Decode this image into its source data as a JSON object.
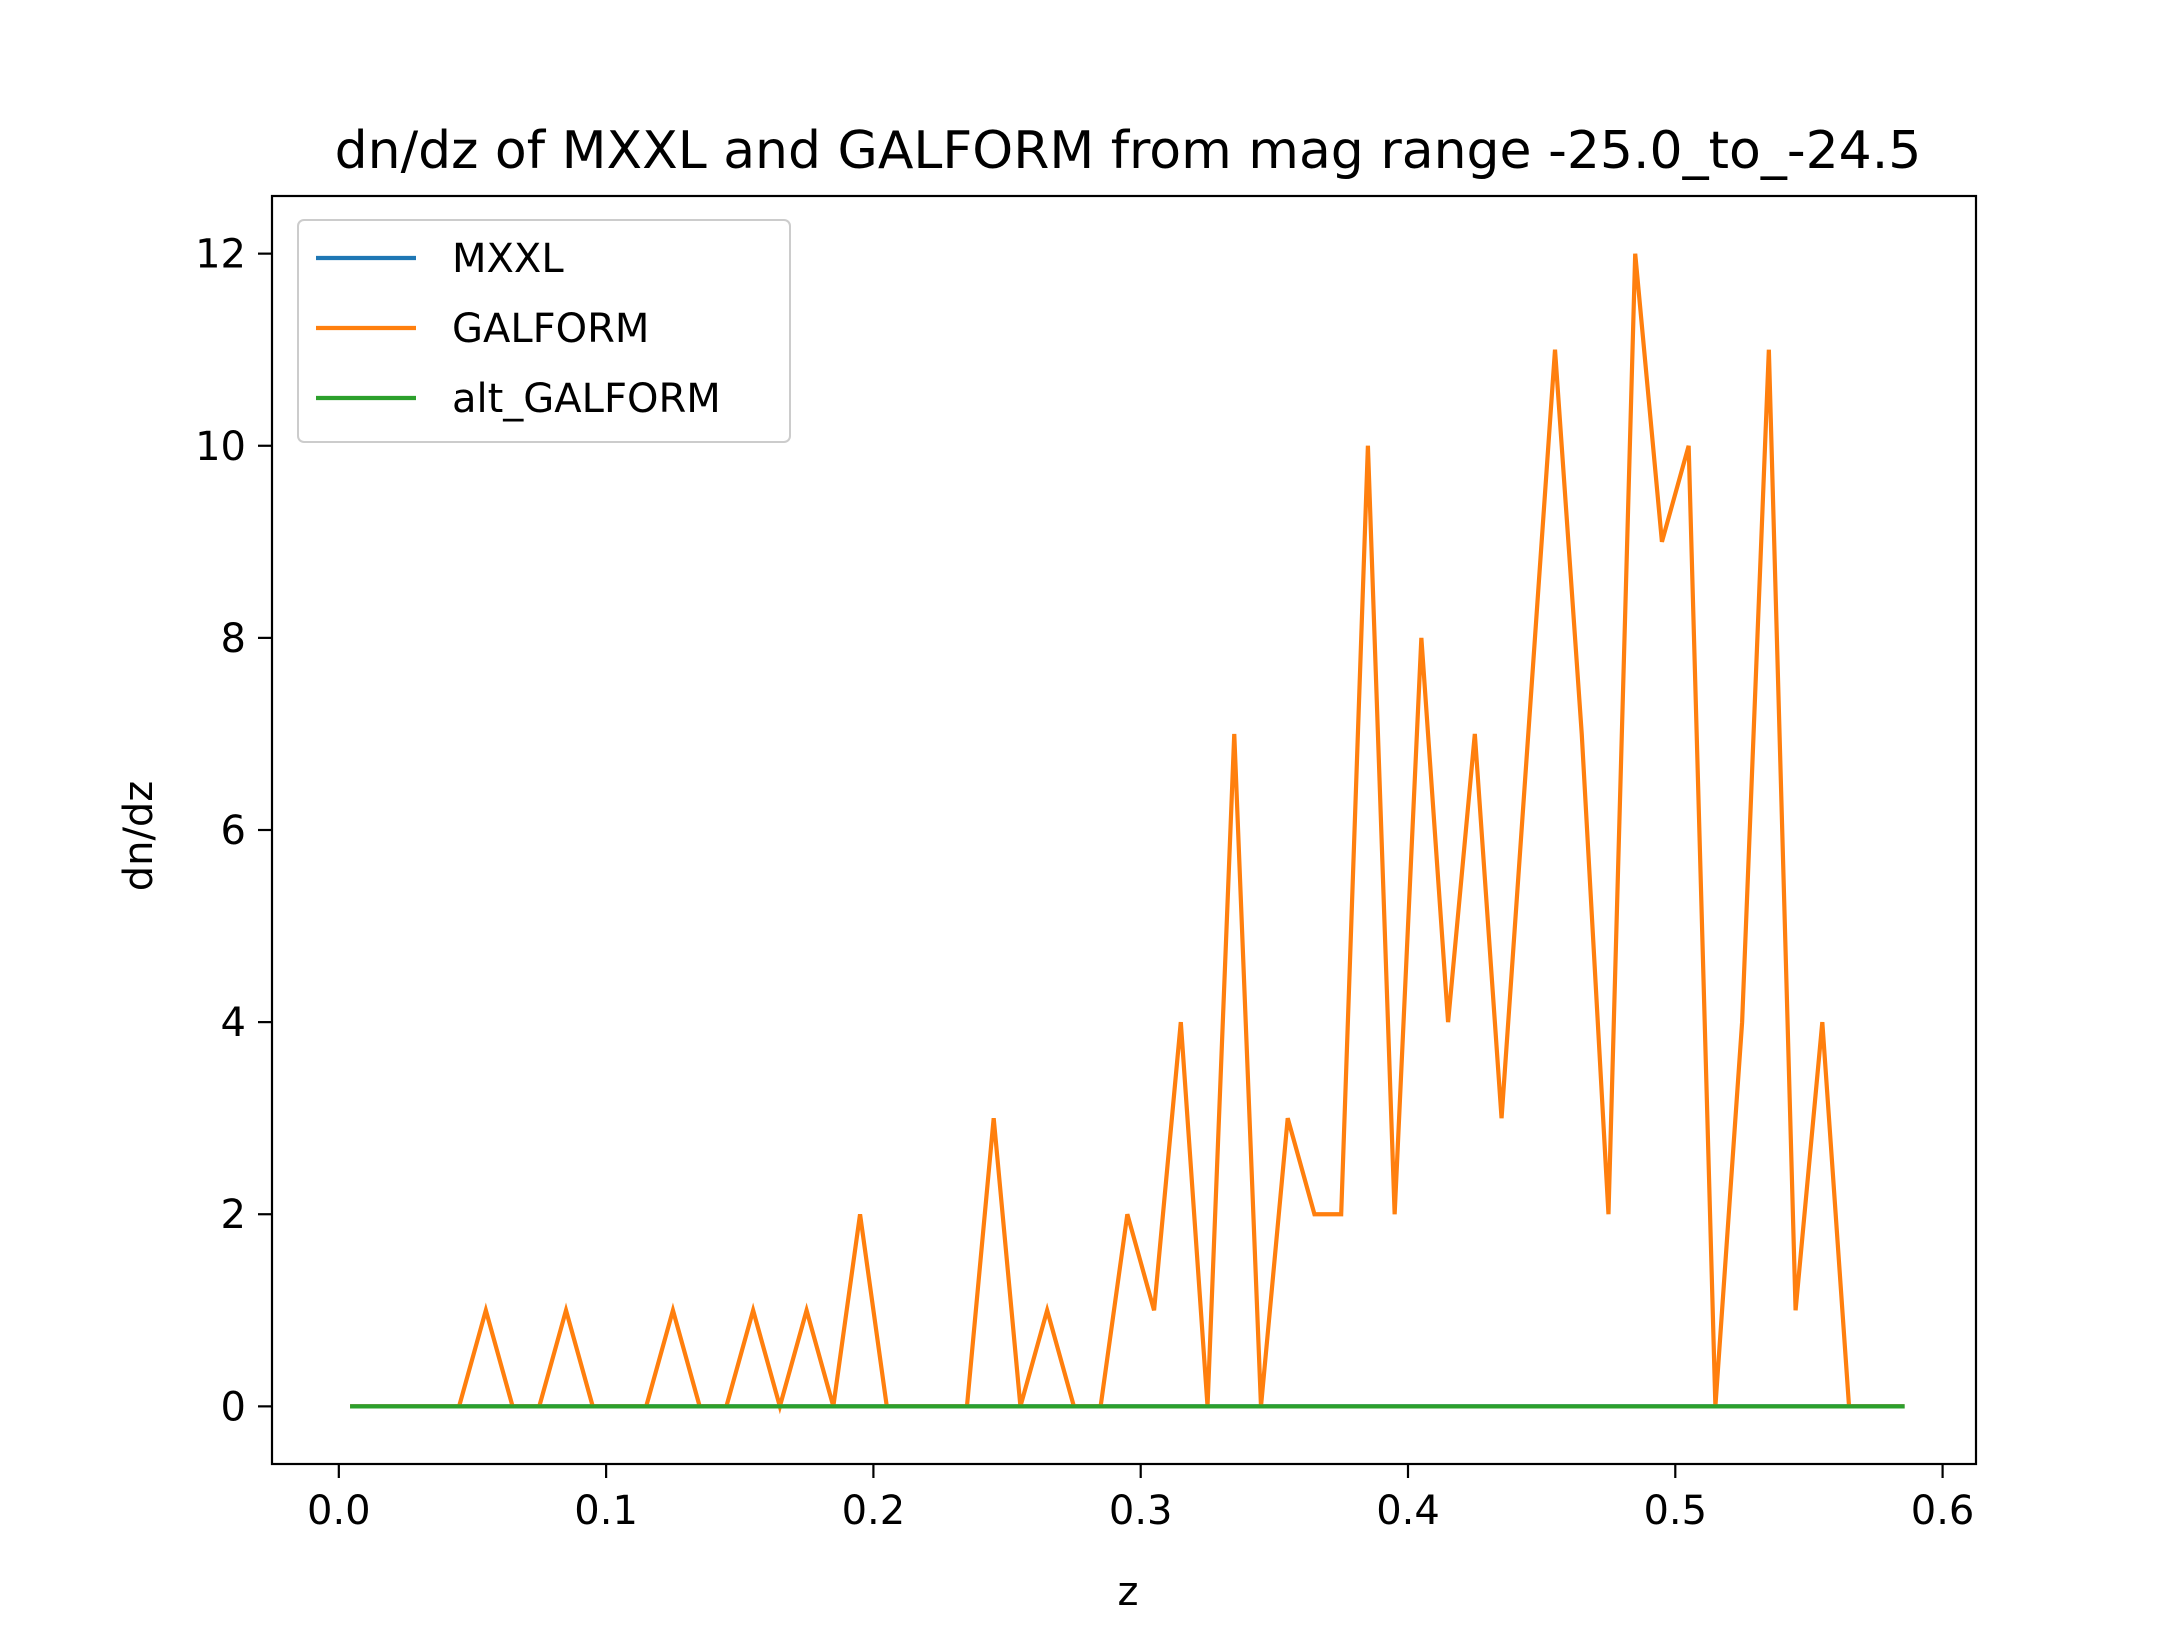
{
  "chart_data": {
    "type": "line",
    "title": "dn/dz of MXXL and GALFORM from mag range -25.0_to_-24.5",
    "xlabel": "z",
    "ylabel": "dn/dz",
    "xlim": [
      -0.025,
      0.6125
    ],
    "ylim": [
      -0.6,
      12.6
    ],
    "xticks": [
      0.0,
      0.1,
      0.2,
      0.3,
      0.4,
      0.5,
      0.6
    ],
    "xtick_labels": [
      "0.0",
      "0.1",
      "0.2",
      "0.3",
      "0.4",
      "0.5",
      "0.6"
    ],
    "yticks": [
      0,
      2,
      4,
      6,
      8,
      10,
      12
    ],
    "ytick_labels": [
      "0",
      "2",
      "4",
      "6",
      "8",
      "10",
      "12"
    ],
    "grid": false,
    "legend_position": "top-left",
    "x": [
      0.005,
      0.015,
      0.025,
      0.035,
      0.045,
      0.055,
      0.065,
      0.075,
      0.085,
      0.095,
      0.105,
      0.115,
      0.125,
      0.135,
      0.145,
      0.155,
      0.165,
      0.175,
      0.185,
      0.195,
      0.205,
      0.215,
      0.225,
      0.235,
      0.245,
      0.255,
      0.265,
      0.275,
      0.285,
      0.295,
      0.305,
      0.315,
      0.325,
      0.335,
      0.345,
      0.355,
      0.365,
      0.375,
      0.385,
      0.395,
      0.405,
      0.415,
      0.425,
      0.435,
      0.445,
      0.455,
      0.465,
      0.475,
      0.485,
      0.495,
      0.505,
      0.515,
      0.525,
      0.535,
      0.545,
      0.555,
      0.565,
      0.575,
      0.585
    ],
    "series": [
      {
        "name": "MXXL",
        "color": "#1f77b4",
        "values": [
          0,
          0,
          0,
          0,
          0,
          0,
          0,
          0,
          0,
          0,
          0,
          0,
          0,
          0,
          0,
          0,
          0,
          0,
          0,
          0,
          0,
          0,
          0,
          0,
          0,
          0,
          0,
          0,
          0,
          0,
          0,
          0,
          0,
          0,
          0,
          0,
          0,
          0,
          0,
          0,
          0,
          0,
          0,
          0,
          0,
          0,
          0,
          0,
          0,
          0,
          0,
          0,
          0,
          0,
          0,
          0,
          0,
          0,
          0
        ]
      },
      {
        "name": "GALFORM",
        "color": "#ff7f0e",
        "values": [
          0,
          0,
          0,
          0,
          0,
          1,
          0,
          0,
          1,
          0,
          0,
          0,
          1,
          0,
          0,
          1,
          0,
          1,
          0,
          2,
          0,
          0,
          0,
          0,
          3,
          0,
          1,
          0,
          0,
          2,
          1,
          4,
          0,
          7,
          0,
          3,
          2,
          2,
          10,
          2,
          8,
          4,
          7,
          3,
          7,
          11,
          7,
          2,
          12,
          9,
          10,
          0,
          4,
          11,
          1,
          4,
          0,
          0,
          0
        ]
      },
      {
        "name": "alt_GALFORM",
        "color": "#2ca02c",
        "values": [
          0,
          0,
          0,
          0,
          0,
          0,
          0,
          0,
          0,
          0,
          0,
          0,
          0,
          0,
          0,
          0,
          0,
          0,
          0,
          0,
          0,
          0,
          0,
          0,
          0,
          0,
          0,
          0,
          0,
          0,
          0,
          0,
          0,
          0,
          0,
          0,
          0,
          0,
          0,
          0,
          0,
          0,
          0,
          0,
          0,
          0,
          0,
          0,
          0,
          0,
          0,
          0,
          0,
          0,
          0,
          0,
          0,
          0,
          0
        ]
      }
    ]
  }
}
